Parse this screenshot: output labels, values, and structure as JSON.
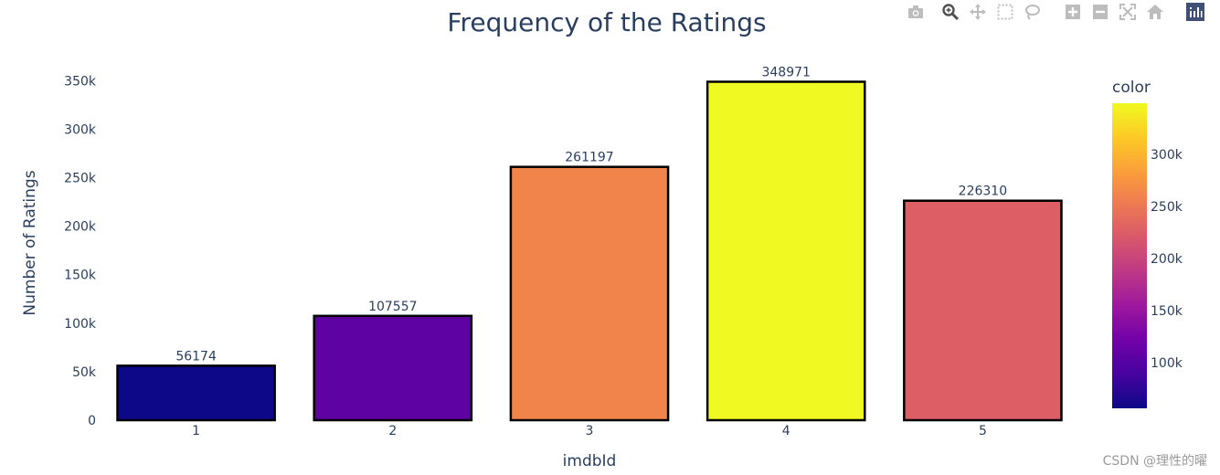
{
  "toolbar": {
    "icons": [
      "camera-icon",
      "zoom-icon",
      "pan-icon",
      "box-select-icon",
      "lasso-icon",
      "zoom-in-icon",
      "zoom-out-icon",
      "autoscale-icon",
      "home-icon",
      "plotly-logo-icon"
    ]
  },
  "watermark": "CSDN @理性的曜",
  "chart_data": {
    "type": "bar",
    "title": "Frequency of the Ratings",
    "xlabel": "imdbId",
    "ylabel": "Number of Ratings",
    "categories": [
      "1",
      "2",
      "3",
      "4",
      "5"
    ],
    "values": [
      56174,
      107557,
      261197,
      348971,
      226310
    ],
    "ylim": [
      0,
      367338
    ],
    "yticks": [
      0,
      50000,
      100000,
      150000,
      200000,
      250000,
      300000,
      350000
    ],
    "ytick_labels": [
      "0",
      "50k",
      "100k",
      "150k",
      "200k",
      "250k",
      "300k",
      "350k"
    ],
    "grid": false,
    "colorbar": {
      "title": "color",
      "range": [
        56174,
        348971
      ],
      "ticks": [
        100000,
        150000,
        200000,
        250000,
        300000
      ],
      "tick_labels": [
        "100k",
        "150k",
        "200k",
        "250k",
        "300k"
      ],
      "colorscale": [
        "#0d0887",
        "#46039f",
        "#7201a8",
        "#9c179e",
        "#bd3786",
        "#d8576b",
        "#ed7953",
        "#fb9f3a",
        "#fdca26",
        "#f0f921"
      ]
    }
  }
}
